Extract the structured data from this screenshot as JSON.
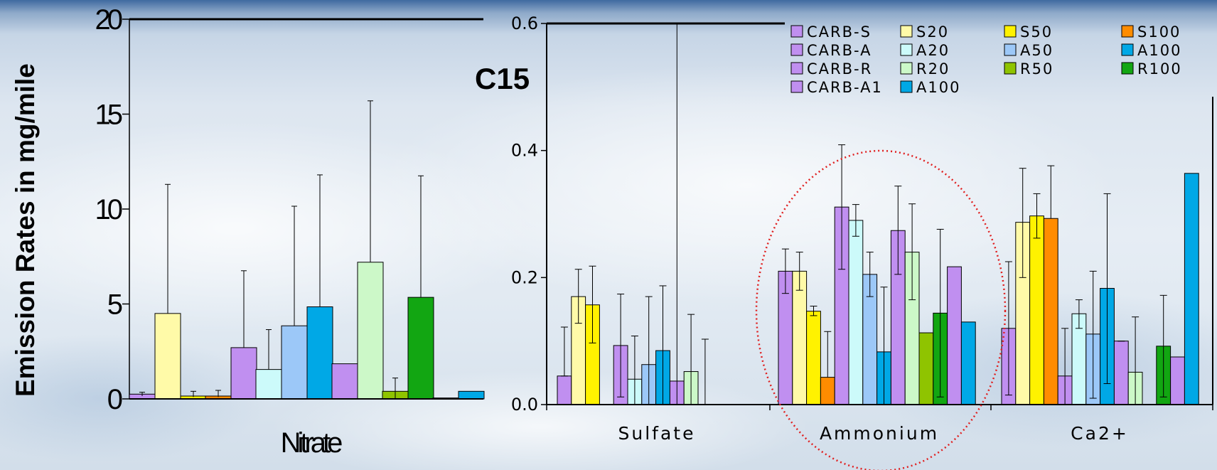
{
  "slide": {
    "ylabel": "Emission Rates in mg/mile",
    "panel_label": "C15"
  },
  "colors": {
    "CARB-S": "#c08ff0",
    "CARB-A": "#c08ff0",
    "CARB-R": "#c08ff0",
    "CARB-A1": "#c08ff0",
    "S20": "#fffaa8",
    "S50": "#fff200",
    "S100": "#ff8c00",
    "A20": "#ccfafa",
    "A50": "#9cc8f8",
    "A100": "#00a8e6",
    "R20": "#ccf8c8",
    "R50": "#8fc400",
    "R100": "#12a612"
  },
  "chart_data": [
    {
      "type": "bar",
      "xlabel": "Nitrate",
      "ylabel": "Emission Rates in mg/mile",
      "ylim": [
        0,
        20
      ],
      "yticks": [
        "0",
        "5",
        "10",
        "15",
        "20"
      ],
      "categories": [
        "Nitrate"
      ],
      "series": [
        {
          "name": "CARB-S",
          "values": [
            0.25
          ],
          "err_low": [
            0.15
          ],
          "err_high": [
            0.35
          ]
        },
        {
          "name": "S20",
          "values": [
            4.5
          ],
          "err_low": [
            4.5
          ],
          "err_high": [
            11.3
          ]
        },
        {
          "name": "S50",
          "values": [
            0.15
          ],
          "err_low": [
            0.1
          ],
          "err_high": [
            0.4
          ]
        },
        {
          "name": "S100",
          "values": [
            0.15
          ],
          "err_low": [
            0.1
          ],
          "err_high": [
            0.45
          ]
        },
        {
          "name": "CARB-A",
          "values": [
            2.7
          ],
          "err_low": [
            2.7
          ],
          "err_high": [
            6.75
          ]
        },
        {
          "name": "A20",
          "values": [
            1.55
          ],
          "err_low": [
            1.55
          ],
          "err_high": [
            3.65
          ]
        },
        {
          "name": "A50",
          "values": [
            3.85
          ],
          "err_low": [
            3.85
          ],
          "err_high": [
            10.15
          ]
        },
        {
          "name": "A100",
          "values": [
            4.85
          ],
          "err_low": [
            4.85
          ],
          "err_high": [
            11.8
          ]
        },
        {
          "name": "CARB-R",
          "values": [
            1.85
          ],
          "err_low": null,
          "err_high": null
        },
        {
          "name": "R20",
          "values": [
            7.2
          ],
          "err_low": [
            7.2
          ],
          "err_high": [
            15.7
          ]
        },
        {
          "name": "R50",
          "values": [
            0.4
          ],
          "err_low": [
            0.0
          ],
          "err_high": [
            1.1
          ]
        },
        {
          "name": "R100",
          "values": [
            5.35
          ],
          "err_low": [
            5.35
          ],
          "err_high": [
            11.75
          ]
        },
        {
          "name": "CARB-A1",
          "values": [
            0.05
          ],
          "err_low": null,
          "err_high": null
        },
        {
          "name": "A100",
          "values": [
            0.4
          ],
          "err_low": null,
          "err_high": null
        }
      ]
    },
    {
      "type": "bar",
      "title": "C15",
      "ylim": [
        0,
        0.6
      ],
      "yticks": [
        "0.0",
        "0.2",
        "0.4",
        "0.6"
      ],
      "categories": [
        "Sulfate",
        "Ammonium",
        "Ca2+"
      ],
      "legend_position": "top",
      "legend": [
        "CARB-S",
        "S20",
        "S50",
        "S100",
        "CARB-A",
        "A20",
        "A50",
        "A100",
        "CARB-R",
        "R20",
        "R50",
        "R100",
        "CARB-A1",
        "A100"
      ],
      "series": [
        {
          "name": "CARB-S",
          "values": [
            0.045,
            0.21,
            0.12
          ],
          "err_low": [
            0.045,
            0.175,
            0.015
          ],
          "err_high": [
            0.122,
            0.245,
            0.225
          ]
        },
        {
          "name": "S20",
          "values": [
            0.17,
            0.21,
            0.287
          ],
          "err_low": [
            0.128,
            0.18,
            0.2
          ],
          "err_high": [
            0.213,
            0.24,
            0.372
          ]
        },
        {
          "name": "S50",
          "values": [
            0.157,
            0.147,
            0.297
          ],
          "err_low": [
            0.097,
            0.14,
            0.262
          ],
          "err_high": [
            0.218,
            0.155,
            0.332
          ]
        },
        {
          "name": "S100",
          "values": [
            0.0,
            0.043,
            0.293
          ],
          "err_low": null,
          "err_high": [
            null,
            0.115,
            0.376
          ]
        },
        {
          "name": "CARB-A",
          "values": [
            0.093,
            0.311,
            0.045
          ],
          "err_low": [
            0.012,
            0.213,
            0.0
          ],
          "err_high": [
            0.174,
            0.409,
            0.12
          ]
        },
        {
          "name": "A20",
          "values": [
            0.04,
            0.29,
            0.143
          ],
          "err_low": [
            0.0,
            0.265,
            0.12
          ],
          "err_high": [
            0.108,
            0.315,
            0.165
          ]
        },
        {
          "name": "A50",
          "values": [
            0.063,
            0.205,
            0.111
          ],
          "err_low": [
            0.0,
            0.17,
            0.01
          ],
          "err_high": [
            0.17,
            0.24,
            0.21
          ]
        },
        {
          "name": "A100",
          "values": [
            0.085,
            0.083,
            0.183
          ],
          "err_low": [
            0.0,
            0.0,
            0.033
          ],
          "err_high": [
            0.187,
            0.185,
            0.332
          ]
        },
        {
          "name": "CARB-R",
          "values": [
            0.037,
            0.274,
            0.1
          ],
          "err_low": [
            0.0,
            0.205,
            0.1
          ],
          "err_high": [
            0.6,
            0.344,
            0.1
          ]
        },
        {
          "name": "R20",
          "values": [
            0.052,
            0.24,
            0.051
          ],
          "err_low": [
            0.0,
            0.165,
            0.0
          ],
          "err_high": [
            0.142,
            0.316,
            0.138
          ]
        },
        {
          "name": "R50",
          "values": [
            0.0,
            0.113,
            0.0
          ],
          "err_low": null,
          "err_high": [
            0.103,
            null,
            null
          ]
        },
        {
          "name": "R100",
          "values": [
            0.0,
            0.144,
            0.092
          ],
          "err_low": [
            null,
            0.012,
            0.012
          ],
          "err_high": [
            null,
            0.276,
            0.172
          ]
        },
        {
          "name": "CARB-A1",
          "values": [
            0.0,
            0.217,
            0.075
          ],
          "err_low": null,
          "err_high": null
        },
        {
          "name": "A100",
          "values": [
            0.0,
            0.13,
            0.364
          ],
          "err_low": null,
          "err_high": null
        }
      ]
    }
  ]
}
